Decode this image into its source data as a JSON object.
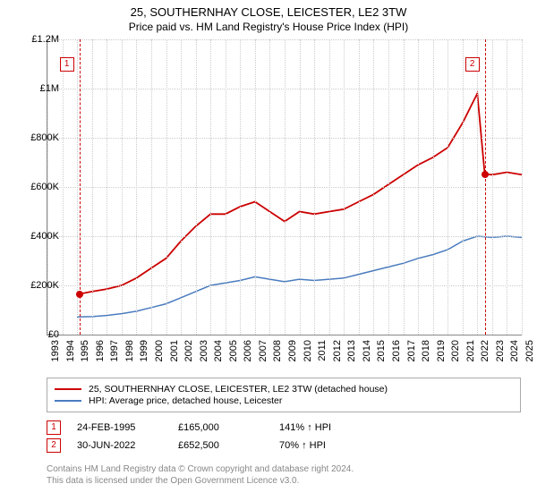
{
  "title": {
    "main": "25, SOUTHERNHAY CLOSE, LEICESTER, LE2 3TW",
    "sub": "Price paid vs. HM Land Registry's House Price Index (HPI)"
  },
  "chart": {
    "type": "line",
    "background_color": "#ffffff",
    "grid_color": "#cccccc",
    "axis_color": "#888888",
    "ylim": [
      0,
      1200000
    ],
    "ytick_step": 200000,
    "yticks": [
      "£0",
      "£200K",
      "£400K",
      "£600K",
      "£800K",
      "£1M",
      "£1.2M"
    ],
    "xlim": [
      1993,
      2025
    ],
    "xticks": [
      "1993",
      "1994",
      "1995",
      "1996",
      "1997",
      "1998",
      "1999",
      "2000",
      "2001",
      "2002",
      "2003",
      "2004",
      "2005",
      "2006",
      "2007",
      "2008",
      "2009",
      "2010",
      "2011",
      "2012",
      "2013",
      "2014",
      "2015",
      "2016",
      "2017",
      "2018",
      "2019",
      "2020",
      "2021",
      "2022",
      "2023",
      "2024",
      "2025"
    ],
    "series": [
      {
        "name": "property",
        "label": "25, SOUTHERNHAY CLOSE, LEICESTER, LE2 3TW (detached house)",
        "color": "#cc0000",
        "line_width": 1.8,
        "data": [
          [
            1995.15,
            165000
          ],
          [
            1996,
            175000
          ],
          [
            1997,
            185000
          ],
          [
            1998,
            200000
          ],
          [
            1999,
            230000
          ],
          [
            2000,
            270000
          ],
          [
            2001,
            310000
          ],
          [
            2002,
            380000
          ],
          [
            2003,
            440000
          ],
          [
            2004,
            490000
          ],
          [
            2005,
            490000
          ],
          [
            2006,
            520000
          ],
          [
            2007,
            540000
          ],
          [
            2008,
            500000
          ],
          [
            2009,
            460000
          ],
          [
            2010,
            500000
          ],
          [
            2011,
            490000
          ],
          [
            2012,
            500000
          ],
          [
            2013,
            510000
          ],
          [
            2014,
            540000
          ],
          [
            2015,
            570000
          ],
          [
            2016,
            610000
          ],
          [
            2017,
            650000
          ],
          [
            2018,
            690000
          ],
          [
            2019,
            720000
          ],
          [
            2020,
            760000
          ],
          [
            2021,
            860000
          ],
          [
            2022,
            980000
          ],
          [
            2022.5,
            652500
          ],
          [
            2023,
            650000
          ],
          [
            2024,
            660000
          ],
          [
            2025,
            650000
          ]
        ]
      },
      {
        "name": "hpi",
        "label": "HPI: Average price, detached house, Leicester",
        "color": "#4a7cbf",
        "line_width": 1.5,
        "data": [
          [
            1995,
            72000
          ],
          [
            1996,
            73000
          ],
          [
            1997,
            78000
          ],
          [
            1998,
            85000
          ],
          [
            1999,
            95000
          ],
          [
            2000,
            110000
          ],
          [
            2001,
            125000
          ],
          [
            2002,
            150000
          ],
          [
            2003,
            175000
          ],
          [
            2004,
            200000
          ],
          [
            2005,
            210000
          ],
          [
            2006,
            220000
          ],
          [
            2007,
            235000
          ],
          [
            2008,
            225000
          ],
          [
            2009,
            215000
          ],
          [
            2010,
            225000
          ],
          [
            2011,
            220000
          ],
          [
            2012,
            225000
          ],
          [
            2013,
            230000
          ],
          [
            2014,
            245000
          ],
          [
            2015,
            260000
          ],
          [
            2016,
            275000
          ],
          [
            2017,
            290000
          ],
          [
            2018,
            310000
          ],
          [
            2019,
            325000
          ],
          [
            2020,
            345000
          ],
          [
            2021,
            380000
          ],
          [
            2022,
            400000
          ],
          [
            2023,
            395000
          ],
          [
            2024,
            400000
          ],
          [
            2025,
            395000
          ]
        ]
      }
    ],
    "markers": [
      {
        "num": "1",
        "x": 1995.15,
        "y": 165000
      },
      {
        "num": "2",
        "x": 2022.5,
        "y": 652500
      }
    ]
  },
  "sales": [
    {
      "num": "1",
      "date": "24-FEB-1995",
      "price": "£165,000",
      "pct": "141% ↑ HPI"
    },
    {
      "num": "2",
      "date": "30-JUN-2022",
      "price": "£652,500",
      "pct": "70% ↑ HPI"
    }
  ],
  "footer": {
    "line1": "Contains HM Land Registry data © Crown copyright and database right 2024.",
    "line2": "This data is licensed under the Open Government Licence v3.0."
  }
}
